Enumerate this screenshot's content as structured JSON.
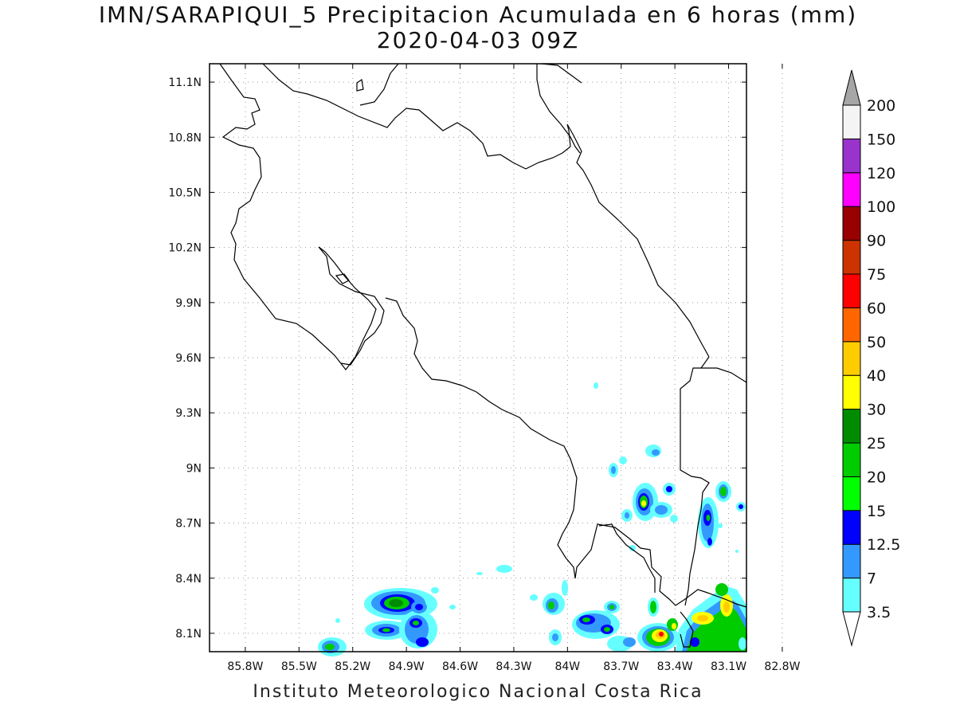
{
  "title": {
    "line1": "IMN/SARAPIQUI_5 Precipitacion Acumulada en 6 horas (mm)",
    "line2": "2020-04-03 09Z"
  },
  "footer": "Instituto Meteorologico Nacional Costa Rica",
  "map": {
    "lon_range": [
      -86.0,
      -83.0
    ],
    "lat_range": [
      8.0,
      11.2
    ],
    "lon_ticks": [
      {
        "value": -85.8,
        "label": "85.8W"
      },
      {
        "value": -85.5,
        "label": "85.5W"
      },
      {
        "value": -85.2,
        "label": "85.2W"
      },
      {
        "value": -84.9,
        "label": "84.9W"
      },
      {
        "value": -84.6,
        "label": "84.6W"
      },
      {
        "value": -84.3,
        "label": "84.3W"
      },
      {
        "value": -84.0,
        "label": "84W"
      },
      {
        "value": -83.7,
        "label": "83.7W"
      },
      {
        "value": -83.4,
        "label": "83.4W"
      },
      {
        "value": -83.1,
        "label": "83.1W"
      },
      {
        "value": -82.8,
        "label": "82.8W"
      }
    ],
    "lat_ticks": [
      {
        "value": 11.1,
        "label": "11.1N"
      },
      {
        "value": 10.8,
        "label": "10.8N"
      },
      {
        "value": 10.5,
        "label": "10.5N"
      },
      {
        "value": 10.2,
        "label": "10.2N"
      },
      {
        "value": 9.9,
        "label": "9.9N"
      },
      {
        "value": 9.6,
        "label": "9.6N"
      },
      {
        "value": 9.3,
        "label": "9.3N"
      },
      {
        "value": 9.0,
        "label": "9N"
      },
      {
        "value": 8.7,
        "label": "8.7N"
      },
      {
        "value": 8.4,
        "label": "8.4N"
      },
      {
        "value": 8.1,
        "label": "8.1N"
      }
    ],
    "grid": true
  },
  "colorbar": {
    "levels": [
      "3.5",
      "7",
      "12.5",
      "15",
      "20",
      "25",
      "30",
      "40",
      "50",
      "60",
      "75",
      "90",
      "100",
      "120",
      "150",
      "200"
    ],
    "colors": [
      "#66ffff",
      "#3399ff",
      "#0000ff",
      "#00ff00",
      "#00cc00",
      "#008c00",
      "#ffff00",
      "#ffcc00",
      "#ff6600",
      "#ff0000",
      "#cc3300",
      "#990000",
      "#ff00ff",
      "#9933cc",
      "#f4f4f4",
      "#a6a6a6"
    ],
    "under_color": "#ffffff",
    "over_color": "#a6a6a6"
  }
}
